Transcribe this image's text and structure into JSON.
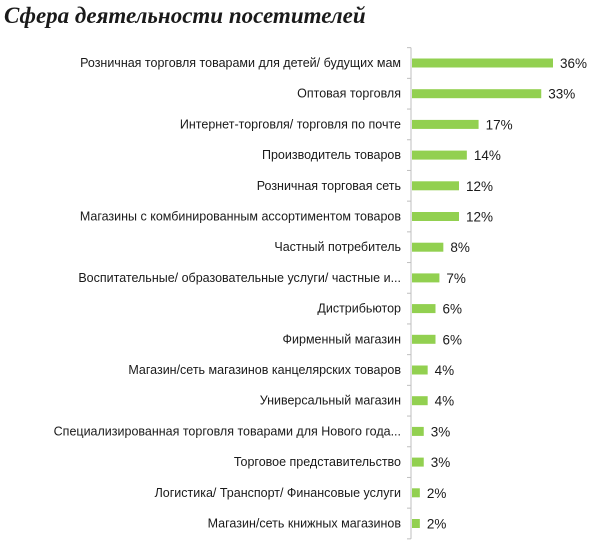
{
  "chart_data": {
    "type": "bar",
    "orientation": "horizontal",
    "title": "Сфера деятельности посетителей",
    "categories": [
      "Розничная торговля  товарами для детей/ будущих мам",
      "Оптовая торговля",
      "Интернет-торговля/ торговля по почте",
      "Производитель товаров",
      "Розничная торговая сеть",
      "Магазины с комбинированным ассортиментом товаров",
      "Частный потребитель",
      "Воспитательные/ образовательные услуги/ частные и...",
      "Дистрибьютор",
      "Фирменный магазин",
      "Магазин/сеть магазинов канцелярских товаров",
      "Универсальный магазин",
      "Специализированная торговля товарами для Нового года...",
      "Торговое представительство",
      "Логистика/ Транспорт/ Финансовые услуги",
      "Магазин/сеть книжных магазинов"
    ],
    "values": [
      36,
      33,
      17,
      14,
      12,
      12,
      8,
      7,
      6,
      6,
      4,
      4,
      3,
      3,
      2,
      2
    ],
    "value_labels": [
      "36%",
      "33%",
      "17%",
      "14%",
      "12%",
      "12%",
      "8%",
      "7%",
      "6%",
      "6%",
      "4%",
      "4%",
      "3%",
      "3%",
      "2%",
      "2%"
    ],
    "xlabel": "",
    "ylabel": "",
    "xlim": [
      0,
      36
    ],
    "grid": false,
    "legend": "none",
    "bar_color": "#92d050"
  }
}
